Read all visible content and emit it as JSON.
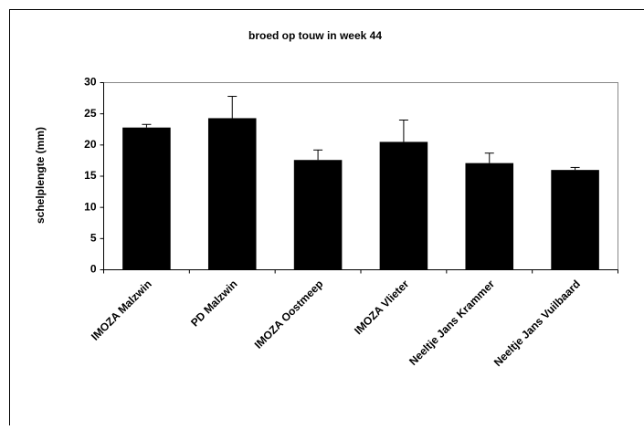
{
  "chart_data": {
    "type": "bar",
    "title": "broed op touw in week 44",
    "y_label": "schelplengte (mm)",
    "categories": [
      "IMOZA Malzwin",
      "PD Malzwin",
      "IMOZA Oostmeep",
      "IMOZA Vlieter",
      "Neeltje Jans Krammer",
      "Neeltje Jans Vuilbaard"
    ],
    "values": [
      22.8,
      24.3,
      17.6,
      20.5,
      17.1,
      16.0
    ],
    "errors": [
      0.5,
      3.5,
      1.6,
      3.5,
      1.6,
      0.4
    ],
    "color": "#000000",
    "ylim": [
      0,
      30
    ],
    "yticks": [
      0,
      5,
      10,
      15,
      20,
      25,
      30
    ],
    "grid": false
  }
}
